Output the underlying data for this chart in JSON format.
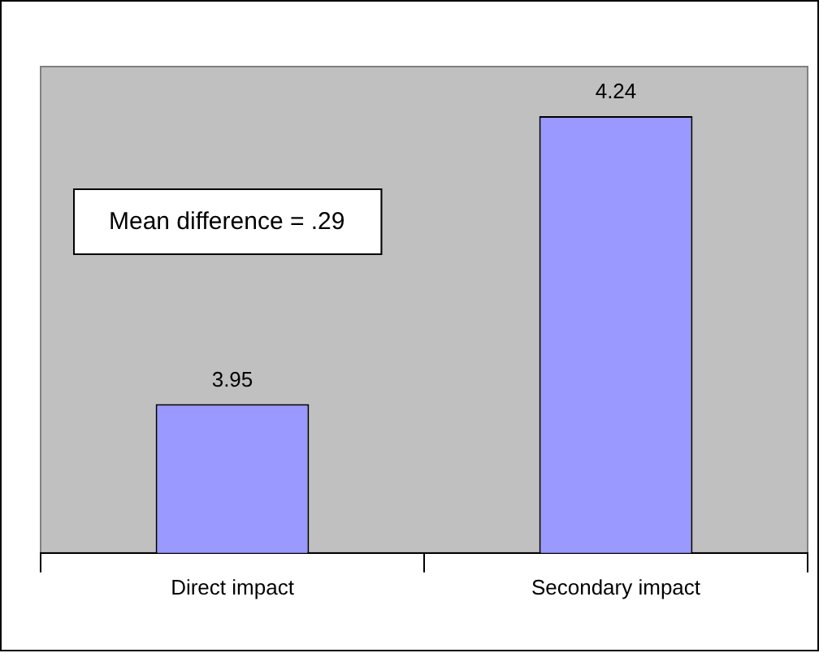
{
  "chart_data": {
    "type": "bar",
    "categories": [
      "Direct impact",
      "Secondary impact"
    ],
    "values": [
      3.95,
      4.24
    ],
    "color": "#9999ff",
    "ylim": [
      3.8,
      4.29
    ],
    "tick_labels": "x",
    "data_labels": true,
    "grid": false,
    "legend": false,
    "annotations": [
      "Mean difference = .29"
    ]
  }
}
